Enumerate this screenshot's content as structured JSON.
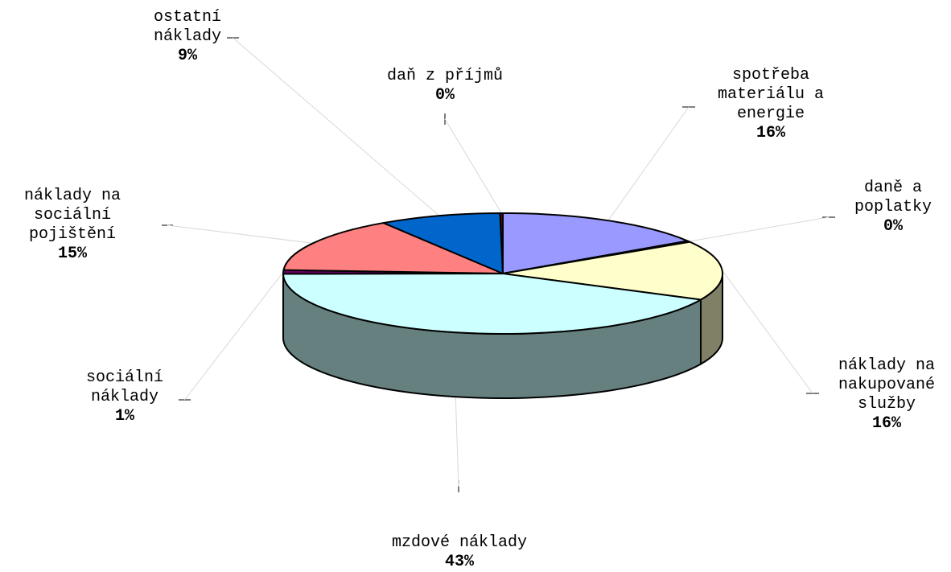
{
  "chart_data": {
    "type": "pie",
    "style": "3d-exploded",
    "title": "",
    "slices": [
      {
        "key": "material",
        "label_lines": [
          "spotřeba",
          "materiálu a",
          "energie"
        ],
        "value": 16,
        "percent_label": "16%",
        "color": "#9999FF"
      },
      {
        "key": "dane",
        "label_lines": [
          "daně a",
          "poplatky"
        ],
        "value": 0.3,
        "percent_label": "0%",
        "color": "#993366"
      },
      {
        "key": "sluzby",
        "label_lines": [
          "náklady na",
          "nakupované",
          "služby"
        ],
        "value": 16,
        "percent_label": "16%",
        "color": "#FFFFCC"
      },
      {
        "key": "mzdove",
        "label_lines": [
          "mzdové náklady"
        ],
        "value": 43,
        "percent_label": "43%",
        "color": "#CCFFFF"
      },
      {
        "key": "socialni",
        "label_lines": [
          "sociální",
          "náklady"
        ],
        "value": 1,
        "percent_label": "1%",
        "color": "#660066"
      },
      {
        "key": "pojisteni",
        "label_lines": [
          "náklady na",
          "sociální",
          "pojištění"
        ],
        "value": 15,
        "percent_label": "15%",
        "color": "#FF8080"
      },
      {
        "key": "ostatni",
        "label_lines": [
          "ostatní",
          "náklady"
        ],
        "value": 9,
        "percent_label": "9%",
        "color": "#0066CC"
      },
      {
        "key": "dan",
        "label_lines": [
          "daň z příjmů"
        ],
        "value": 0.2,
        "percent_label": "0%",
        "color": "#800000"
      }
    ],
    "side_color": "#668080"
  }
}
